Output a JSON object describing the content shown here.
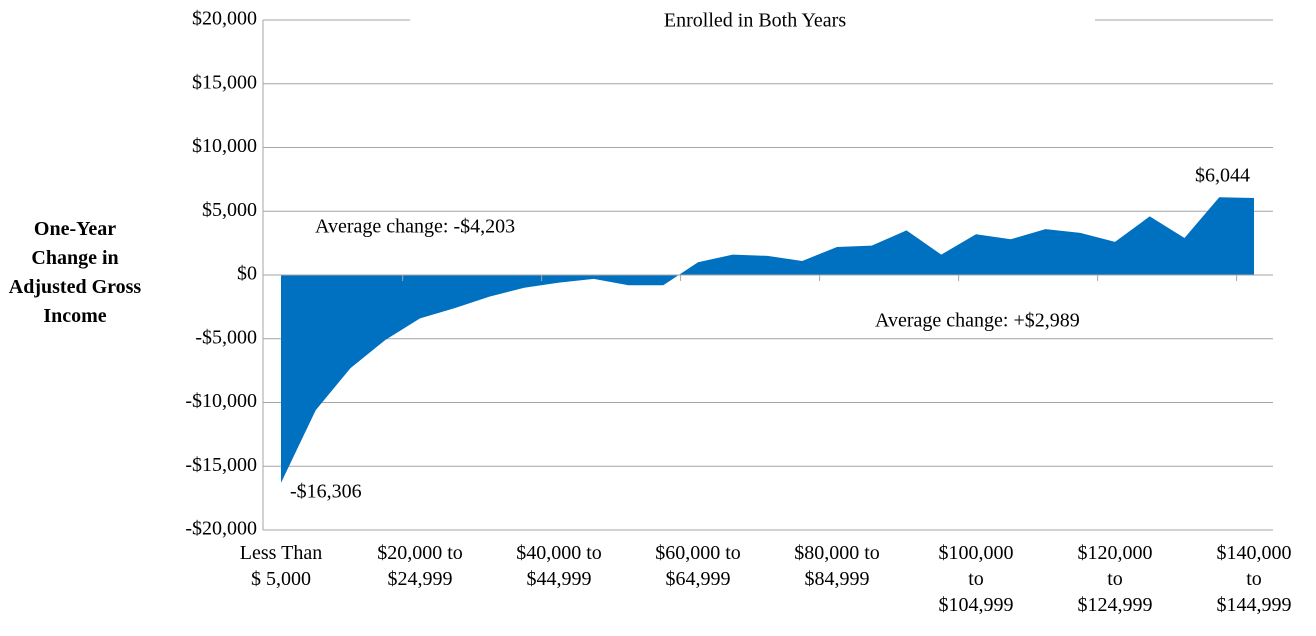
{
  "chart_data": {
    "type": "area",
    "title": "Enrolled in Both Years",
    "y_label": "One-Year Change in Adjusted Gross Income",
    "categories": [
      "Less Than $ 5,000",
      null,
      null,
      null,
      "$20,000 to $24,999",
      null,
      null,
      null,
      "$40,000 to $44,999",
      null,
      null,
      null,
      "$60,000 to $64,999",
      null,
      null,
      null,
      "$80,000 to $84,999",
      null,
      null,
      null,
      "$100,000 to $104,999",
      null,
      null,
      null,
      "$120,000 to $124,999",
      null,
      null,
      null,
      "$140,000 to $144,999"
    ],
    "values": [
      -16306,
      -10600,
      -7300,
      -5100,
      -3400,
      -2600,
      -1700,
      -1000,
      -600,
      -300,
      -800,
      -800,
      1000,
      1600,
      1500,
      1100,
      2200,
      2300,
      3500,
      1600,
      3200,
      2800,
      3600,
      3300,
      2600,
      4600,
      2900,
      6100,
      6044
    ],
    "value_labels": [
      "-$16,306",
      null,
      null,
      null,
      null,
      null,
      null,
      null,
      null,
      null,
      null,
      null,
      null,
      null,
      null,
      null,
      null,
      null,
      null,
      null,
      null,
      null,
      null,
      null,
      null,
      null,
      null,
      null,
      "$6,044"
    ],
    "color": "#0070c0",
    "ylim": [
      -20000,
      20000
    ],
    "yticks": [
      {
        "value": -20000,
        "label": "-$20,000"
      },
      {
        "value": -15000,
        "label": "-$15,000"
      },
      {
        "value": -10000,
        "label": "-$10,000"
      },
      {
        "value": -5000,
        "label": "-$5,000"
      },
      {
        "value": 0,
        "label": "$0"
      },
      {
        "value": 5000,
        "label": "$5,000"
      },
      {
        "value": 10000,
        "label": "$10,000"
      },
      {
        "value": 15000,
        "label": "$15,000"
      },
      {
        "value": 20000,
        "label": "$20,000"
      }
    ],
    "grid": true,
    "annotations": [
      "Average change: -$4,203",
      "Average change: +$2,989"
    ]
  }
}
